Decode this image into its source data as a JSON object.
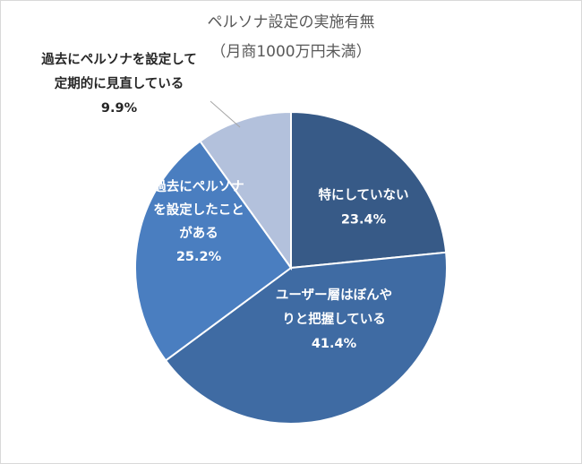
{
  "chart_data": {
    "type": "pie",
    "title_line1": "ペルソナ設定の実施有無",
    "title_line2": "（月商1000万円未満）",
    "slices": [
      {
        "label_lines": [
          "特にしていない"
        ],
        "value_label": "23.4%",
        "value": 23.4,
        "color": "#375a87"
      },
      {
        "label_lines": [
          "ユーザー層はぼんや",
          "りと把握している"
        ],
        "value_label": "41.4%",
        "value": 41.4,
        "color": "#3f6ba3"
      },
      {
        "label_lines": [
          "過去にペルソナ",
          "を設定したこと",
          "がある"
        ],
        "value_label": "25.2%",
        "value": 25.2,
        "color": "#4a7ec0"
      },
      {
        "label_lines": [
          "過去にペルソナを設定して",
          "定期的に見直している"
        ],
        "value_label": "9.9%",
        "value": 9.9,
        "color": "#b3c1dc"
      }
    ]
  }
}
